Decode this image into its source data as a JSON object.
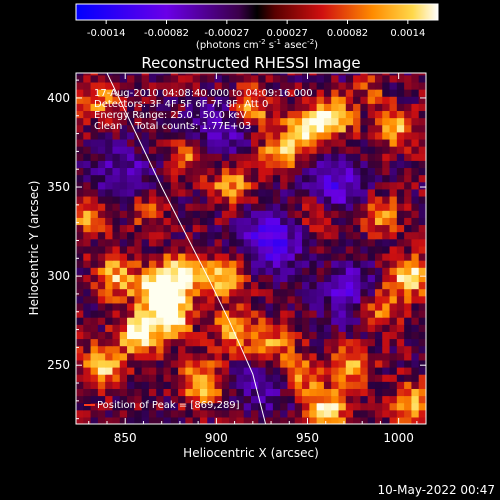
{
  "colorbar": {
    "ticks": [
      "-0.0014",
      "-0.00082",
      "-0.00027",
      "0.00027",
      "0.00082",
      "0.0014"
    ],
    "unit_label": {
      "prefix": "(photons cm",
      "sup1": "-2",
      "mid1": " s",
      "sup2": "-1",
      "mid2": " asec",
      "sup3": "-2",
      "suffix": ")"
    },
    "range": [
      -0.0014,
      0.0014
    ]
  },
  "chart_data": {
    "type": "heatmap",
    "title": "Reconstructed RHESSI Image",
    "xlabel": "Heliocentric X (arcsec)",
    "ylabel": "Heliocentric Y (arcsec)",
    "xlim": [
      823,
      1015
    ],
    "ylim": [
      217,
      414
    ],
    "x_ticks": [
      850,
      900,
      950,
      1000
    ],
    "y_ticks": [
      250,
      300,
      350,
      400
    ],
    "annotations": [
      "17-Aug-2010 04:08:40.000 to 04:09:16.000",
      "Detectors: 3F 4F 5F 6F 7F 8F, Att 0",
      "Energy Range: 25.0 - 50.0 keV",
      "Clean    Total counts: 1.77E+03"
    ],
    "peak_label": "Position of Peak = [869,289]",
    "limb_curve": [
      [
        840,
        414
      ],
      [
        870,
        350
      ],
      [
        895,
        300
      ],
      [
        907,
        275
      ],
      [
        920,
        245
      ],
      [
        927,
        217
      ]
    ],
    "bright_regions": [
      {
        "x": 868,
        "y": 292,
        "intensity": 1.0
      },
      {
        "x": 875,
        "y": 278,
        "intensity": 0.9
      },
      {
        "x": 858,
        "y": 268,
        "intensity": 0.85
      },
      {
        "x": 882,
        "y": 302,
        "intensity": 0.8
      },
      {
        "x": 905,
        "y": 300,
        "intensity": 0.7
      },
      {
        "x": 845,
        "y": 300,
        "intensity": 0.65
      },
      {
        "x": 838,
        "y": 250,
        "intensity": 0.7
      },
      {
        "x": 892,
        "y": 240,
        "intensity": 0.7
      },
      {
        "x": 910,
        "y": 270,
        "intensity": 0.6
      },
      {
        "x": 950,
        "y": 383,
        "intensity": 0.75
      },
      {
        "x": 965,
        "y": 390,
        "intensity": 0.75
      },
      {
        "x": 985,
        "y": 405,
        "intensity": 0.7
      },
      {
        "x": 998,
        "y": 385,
        "intensity": 0.65
      },
      {
        "x": 935,
        "y": 370,
        "intensity": 0.6
      },
      {
        "x": 908,
        "y": 352,
        "intensity": 0.6
      },
      {
        "x": 885,
        "y": 368,
        "intensity": 0.55
      },
      {
        "x": 920,
        "y": 395,
        "intensity": 0.55
      },
      {
        "x": 835,
        "y": 400,
        "intensity": 0.5
      },
      {
        "x": 1005,
        "y": 300,
        "intensity": 0.8
      },
      {
        "x": 988,
        "y": 283,
        "intensity": 0.65
      },
      {
        "x": 960,
        "y": 225,
        "intensity": 0.8
      },
      {
        "x": 945,
        "y": 245,
        "intensity": 0.7
      },
      {
        "x": 1008,
        "y": 228,
        "intensity": 0.65
      },
      {
        "x": 975,
        "y": 250,
        "intensity": 0.6
      },
      {
        "x": 930,
        "y": 262,
        "intensity": 0.55
      },
      {
        "x": 990,
        "y": 335,
        "intensity": 0.5
      },
      {
        "x": 955,
        "y": 335,
        "intensity": 0.5
      },
      {
        "x": 830,
        "y": 335,
        "intensity": 0.55
      },
      {
        "x": 860,
        "y": 340,
        "intensity": 0.45
      }
    ],
    "dark_regions": [
      {
        "x": 930,
        "y": 320,
        "intensity": 0.7
      },
      {
        "x": 965,
        "y": 350,
        "intensity": 0.6
      },
      {
        "x": 900,
        "y": 380,
        "intensity": 0.5
      },
      {
        "x": 975,
        "y": 290,
        "intensity": 0.6
      },
      {
        "x": 850,
        "y": 355,
        "intensity": 0.5
      },
      {
        "x": 985,
        "y": 405,
        "intensity": 0.4
      },
      {
        "x": 930,
        "y": 240,
        "intensity": 0.45
      }
    ]
  },
  "footer": {
    "timestamp": "10-May-2022 00:47"
  }
}
